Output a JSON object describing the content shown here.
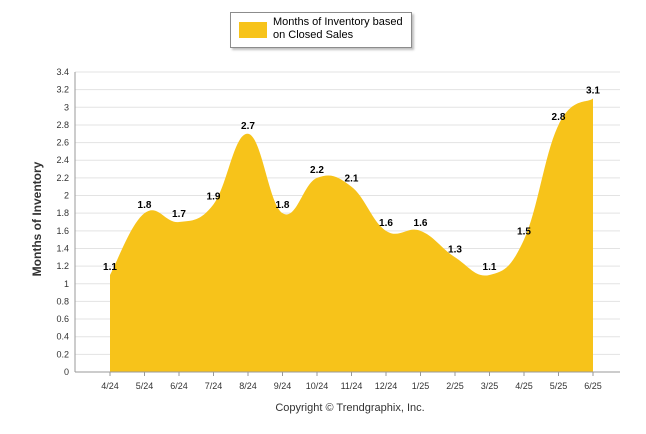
{
  "legend": {
    "label": "Months of Inventory based on Closed Sales"
  },
  "footer": {
    "copyright": "Copyright © Trendgraphix, Inc."
  },
  "colors": {
    "series": "#f7c31a",
    "grid": "#e3e3e3",
    "axis": "#999999"
  },
  "chart_data": {
    "type": "area",
    "categories": [
      "4/24",
      "5/24",
      "6/24",
      "7/24",
      "8/24",
      "9/24",
      "10/24",
      "11/24",
      "12/24",
      "1/25",
      "2/25",
      "3/25",
      "4/25",
      "5/25",
      "6/25"
    ],
    "series": [
      {
        "name": "Months of Inventory based on Closed Sales",
        "values": [
          1.1,
          1.8,
          1.7,
          1.9,
          2.7,
          1.8,
          2.2,
          2.1,
          1.6,
          1.6,
          1.3,
          1.1,
          1.5,
          2.8,
          3.1
        ]
      }
    ],
    "data_labels": [
      "1.1",
      "1.8",
      "1.7",
      "1.9",
      "2.7",
      "1.8",
      "2.2",
      "2.1",
      "1.6",
      "1.6",
      "1.3",
      "1.1",
      "1.5",
      "2.8",
      "3.1"
    ],
    "ylabel": "Months of Inventory",
    "ylim": [
      0,
      3.4
    ],
    "yticks": [
      "0",
      "0.2",
      "0.4",
      "0.6",
      "0.8",
      "1",
      "1.2",
      "1.4",
      "1.6",
      "1.8",
      "2",
      "2.2",
      "2.4",
      "2.6",
      "2.8",
      "3",
      "3.2",
      "3.4"
    ],
    "grid": true,
    "legend_position": "top-center"
  }
}
